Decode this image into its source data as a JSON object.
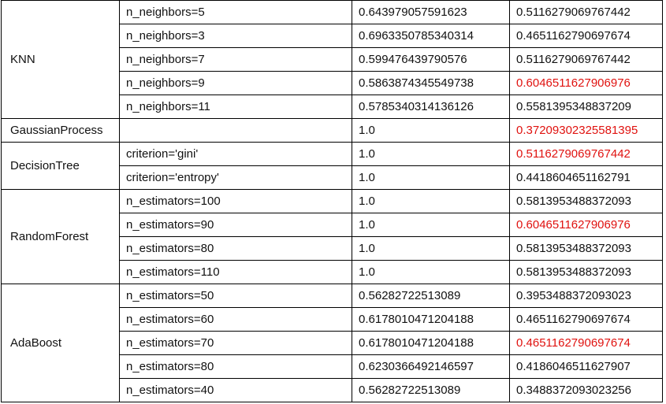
{
  "groups": [
    {
      "model": "KNN",
      "rows": [
        {
          "param": "n_neighbors=5",
          "score1": "0.643979057591623",
          "score2": "0.5116279069767442",
          "highlight": false
        },
        {
          "param": "n_neighbors=3",
          "score1": "0.6963350785340314",
          "score2": "0.4651162790697674",
          "highlight": false
        },
        {
          "param": "n_neighbors=7",
          "score1": "0.599476439790576",
          "score2": "0.5116279069767442",
          "highlight": false
        },
        {
          "param": "n_neighbors=9",
          "score1": "0.5863874345549738",
          "score2": "0.6046511627906976",
          "highlight": true
        },
        {
          "param": "n_neighbors=11",
          "score1": "0.5785340314136126",
          "score2": "0.5581395348837209",
          "highlight": false
        }
      ]
    },
    {
      "model": "GaussianProcess",
      "rows": [
        {
          "param": "",
          "score1": "1.0",
          "score2": "0.37209302325581395",
          "highlight": true
        }
      ]
    },
    {
      "model": "DecisionTree",
      "rows": [
        {
          "param": "criterion='gini'",
          "score1": "1.0",
          "score2": "0.5116279069767442",
          "highlight": true
        },
        {
          "param": "criterion='entropy'",
          "score1": "1.0",
          "score2": "0.4418604651162791",
          "highlight": false
        }
      ]
    },
    {
      "model": "RandomForest",
      "rows": [
        {
          "param": "n_estimators=100",
          "score1": "1.0",
          "score2": "0.5813953488372093",
          "highlight": false
        },
        {
          "param": "n_estimators=90",
          "score1": "1.0",
          "score2": "0.6046511627906976",
          "highlight": true
        },
        {
          "param": "n_estimators=80",
          "score1": "1.0",
          "score2": "0.5813953488372093",
          "highlight": false
        },
        {
          "param": "n_estimators=110",
          "score1": "1.0",
          "score2": "0.5813953488372093",
          "highlight": false
        }
      ]
    },
    {
      "model": "AdaBoost",
      "rows": [
        {
          "param": "n_estimators=50",
          "score1": "0.56282722513089",
          "score2": "0.3953488372093023",
          "highlight": false
        },
        {
          "param": "n_estimators=60",
          "score1": "0.6178010471204188",
          "score2": "0.4651162790697674",
          "highlight": false
        },
        {
          "param": "n_estimators=70",
          "score1": "0.6178010471204188",
          "score2": "0.4651162790697674",
          "highlight": true
        },
        {
          "param": "n_estimators=80",
          "score1": "0.6230366492146597",
          "score2": "0.4186046511627907",
          "highlight": false
        },
        {
          "param": "n_estimators=40",
          "score1": "0.56282722513089",
          "score2": "0.3488372093023256",
          "highlight": false
        }
      ]
    }
  ],
  "highlight_color": "#e0120f"
}
